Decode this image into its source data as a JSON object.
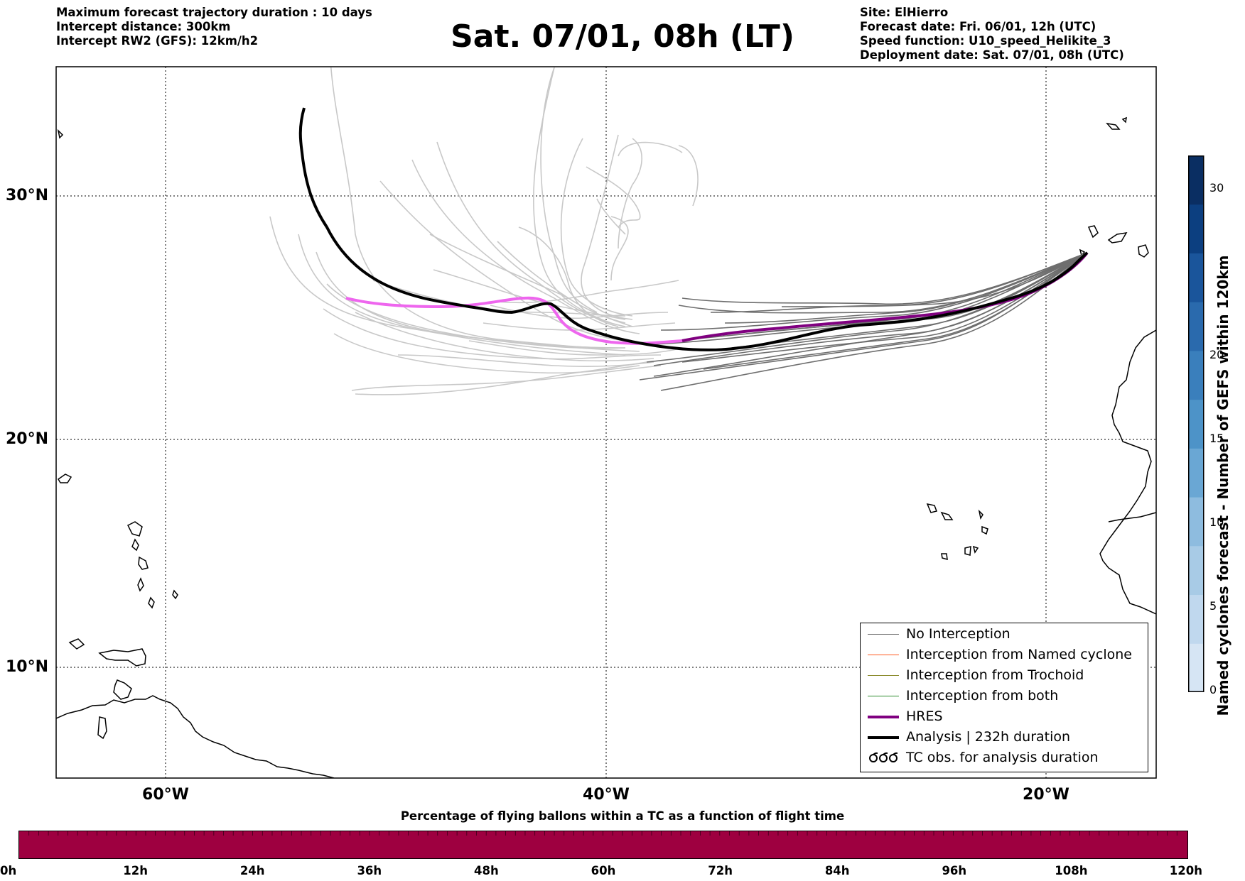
{
  "header": {
    "left": [
      "Maximum forecast trajectory duration : 10 days",
      "Intercept distance: 300km",
      "Intercept RW2 (GFS):  12km/h2"
    ],
    "title": "Sat. 07/01, 08h (LT)",
    "right": [
      "Site: ElHierro",
      "Forecast date: Fri. 06/01, 12h (UTC)",
      "Speed function: U10_speed_Helikite_3",
      "Deployment date: Sat. 07/01, 08h (UTC)"
    ]
  },
  "map": {
    "lat_labels": [
      "30°N",
      "20°N",
      "10°N"
    ],
    "lon_labels": [
      "60°W",
      "40°W",
      "20°W"
    ]
  },
  "legend": {
    "items": [
      {
        "label": "No Interception",
        "color": "#707070"
      },
      {
        "label": "Interception from Named cyclone",
        "color": "#ff5a1e"
      },
      {
        "label": "Interception from Trochoid",
        "color": "#8a8a2a"
      },
      {
        "label": "Interception from both",
        "color": "#2e8b2e"
      },
      {
        "label": "HRES",
        "color": "#800080"
      },
      {
        "label": "Analysis | 232h duration",
        "color": "#000000"
      },
      {
        "label": "TC obs. for analysis duration",
        "color": "#000000"
      }
    ]
  },
  "colorbar": {
    "title": "Named cyclones forecast - Number of GEFS within 120km",
    "ticks": [
      "0",
      "5",
      "10",
      "15",
      "20",
      "30"
    ],
    "colors": [
      "#d6e5f4",
      "#c0d8ee",
      "#a8cbe6",
      "#8ebcdf",
      "#6aa7d4",
      "#4d93c8",
      "#3a7fbc",
      "#2a6aad",
      "#1a559b",
      "#0c3f80",
      "#0a2e62"
    ]
  },
  "timebar": {
    "caption": "Percentage of flying ballons within a TC as a function of flight time",
    "ticks": [
      "0h",
      "12h",
      "24h",
      "36h",
      "48h",
      "60h",
      "72h",
      "84h",
      "96h",
      "108h",
      "120h"
    ],
    "color": "#9e0040"
  }
}
